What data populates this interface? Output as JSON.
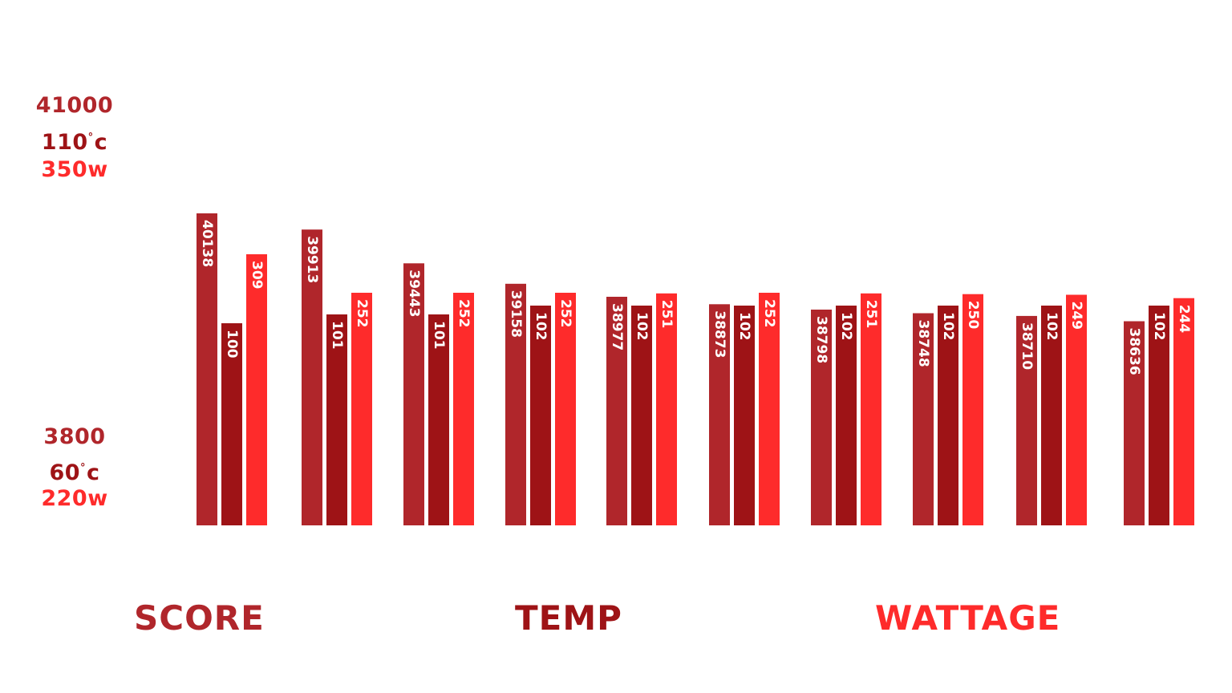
{
  "colors": {
    "score": "#b0262b",
    "temp": "#9e1316",
    "wattage": "#fe2b2b",
    "bar_label": "#ffffff",
    "background": "#ffffff"
  },
  "axis": {
    "top": {
      "score": "41000",
      "temp_num": "110",
      "temp_deg": "°",
      "temp_unit": "c",
      "wattage": "350w"
    },
    "bottom": {
      "score": "3800",
      "temp_num": "60",
      "temp_deg": "°",
      "temp_unit": "c",
      "wattage": "220w"
    }
  },
  "legend": {
    "score": "SCORE",
    "temp": "TEMP",
    "wattage": "WATTAGE"
  },
  "chart_data": {
    "type": "bar",
    "categories": [
      "",
      "",
      "",
      "",
      "",
      "",
      "",
      "",
      "",
      ""
    ],
    "series": [
      {
        "name": "SCORE",
        "color": "#b0262b",
        "values": [
          40138,
          39913,
          39443,
          39158,
          38977,
          38873,
          38798,
          38748,
          38710,
          38636
        ],
        "labels": [
          "40138",
          "39913",
          "39443",
          "39158",
          "38977",
          "38873",
          "38798",
          "38748",
          "38710",
          "38636"
        ]
      },
      {
        "name": "TEMP",
        "color": "#9e1316",
        "values": [
          100,
          101,
          101,
          102,
          102,
          102,
          102,
          102,
          102,
          102
        ],
        "labels": [
          "100",
          "101",
          "101",
          "102",
          "102",
          "102",
          "102",
          "102",
          "102",
          "102"
        ]
      },
      {
        "name": "WATTAGE",
        "color": "#fe2b2b",
        "values": [
          309,
          252,
          252,
          252,
          251,
          252,
          251,
          250,
          249,
          244
        ],
        "labels": [
          "309",
          "252",
          "252",
          "252",
          "251",
          "252",
          "251",
          "250",
          "249",
          "244"
        ]
      }
    ],
    "legend": "bottom",
    "grid": false
  }
}
